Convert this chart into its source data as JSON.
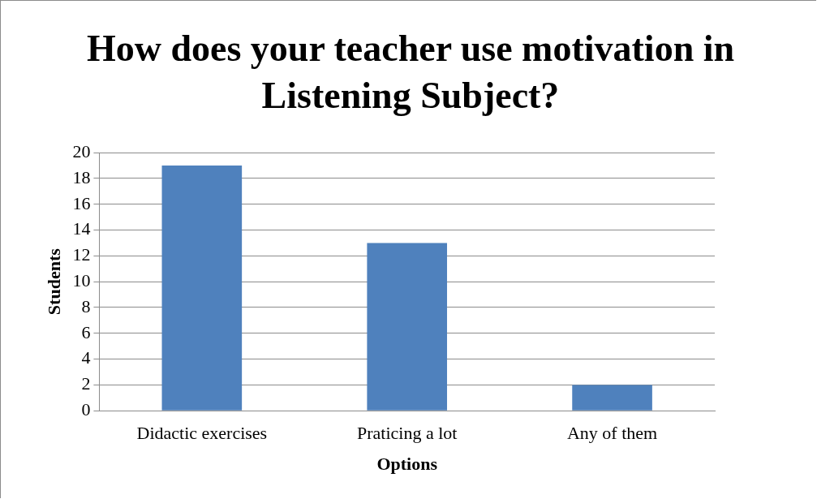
{
  "chart_data": {
    "type": "bar",
    "title": "How does your teacher use motivation in Listening Subject?",
    "xlabel": "Options",
    "ylabel": "Students",
    "categories": [
      "Didactic exercises",
      "Praticing a lot",
      "Any of them"
    ],
    "values": [
      19,
      13,
      2
    ],
    "color": "#4f81bd",
    "ylim": [
      0,
      20
    ],
    "yticks": [
      0,
      2,
      4,
      6,
      8,
      10,
      12,
      14,
      16,
      18,
      20
    ],
    "grid": "y",
    "legend": false
  }
}
